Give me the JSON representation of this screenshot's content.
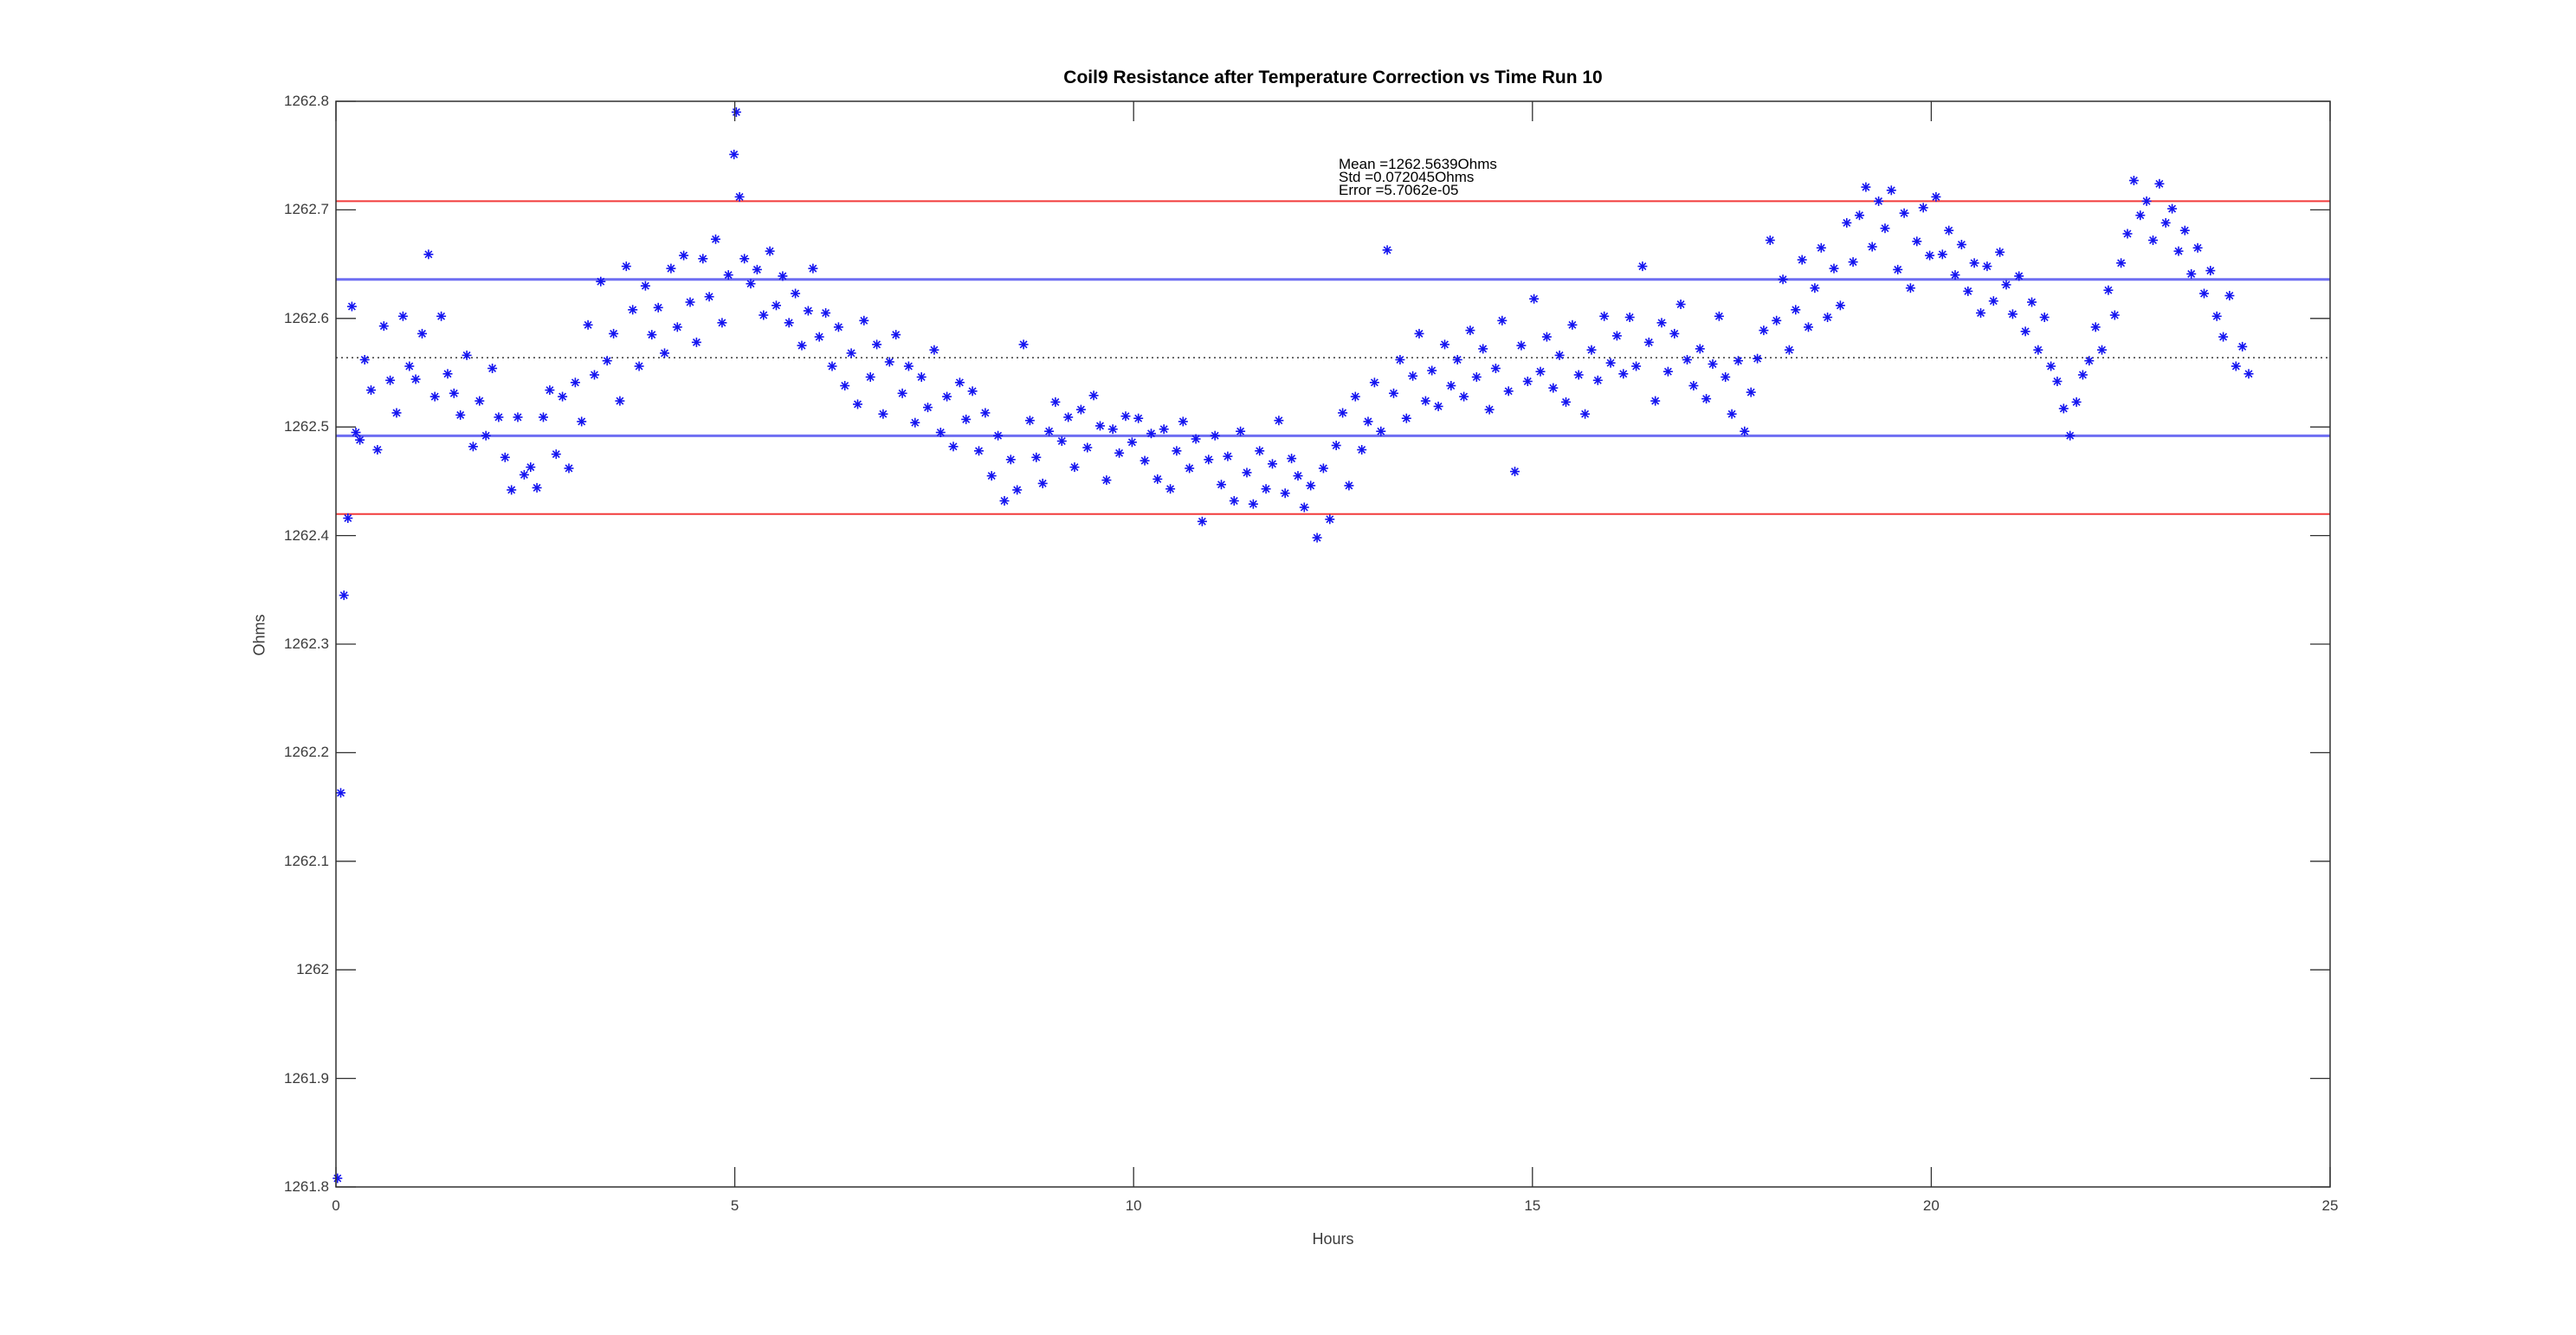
{
  "figure": {
    "title": "Coil9 Resistance after Temperature Correction vs Time Run 10",
    "annotation": {
      "mean_label": "Mean =1262.5639Ohms",
      "std_label": "Std =0.072045Ohms",
      "error_label": "Error =5.7062e-05"
    }
  },
  "chart_data": {
    "type": "scatter",
    "title": "Coil9 Resistance after Temperature Correction vs Time Run 10",
    "xlabel": "Hours",
    "ylabel": "Ohms",
    "xlim": [
      0,
      25
    ],
    "ylim": [
      1261.8,
      1262.8
    ],
    "xtick_values": [
      0,
      5,
      10,
      15,
      20,
      25
    ],
    "xtick_labels": [
      "0",
      "5",
      "10",
      "15",
      "20",
      "25"
    ],
    "ytick_values": [
      1261.8,
      1261.9,
      1262,
      1262.1,
      1262.2,
      1262.3,
      1262.4,
      1262.5,
      1262.6,
      1262.7,
      1262.8
    ],
    "ytick_labels": [
      "1261.8",
      "1261.9",
      "1262",
      "1262.1",
      "1262.2",
      "1262.3",
      "1262.4",
      "1262.5",
      "1262.6",
      "1262.7",
      "1262.8"
    ],
    "grid": false,
    "legend": "none",
    "marker": {
      "shape": "asterisk",
      "color": "#1414f0",
      "size": 11
    },
    "stats": {
      "mean": 1262.5639,
      "std": 0.072045,
      "error": 5.7062e-05
    },
    "stat_lines": [
      {
        "name": "mean",
        "value": 1262.5639,
        "style": "dotted",
        "color": "#111111",
        "width": 1.2
      },
      {
        "name": "mean-plus-std",
        "value": 1262.6359,
        "style": "solid",
        "color": "#6e6ef2",
        "width": 3
      },
      {
        "name": "mean-minus-std",
        "value": 1262.4919,
        "style": "solid",
        "color": "#6e6ef2",
        "width": 3
      },
      {
        "name": "mean-plus-2std",
        "value": 1262.708,
        "style": "solid",
        "color": "#f23b3b",
        "width": 2
      },
      {
        "name": "mean-minus-2std",
        "value": 1262.4198,
        "style": "solid",
        "color": "#f23b3b",
        "width": 2
      }
    ],
    "points": [
      [
        0.02,
        1261.808
      ],
      [
        0.06,
        1262.163
      ],
      [
        0.1,
        1262.345
      ],
      [
        0.15,
        1262.416
      ],
      [
        0.2,
        1262.611
      ],
      [
        0.25,
        1262.495
      ],
      [
        0.3,
        1262.488
      ],
      [
        0.36,
        1262.562
      ],
      [
        0.44,
        1262.534
      ],
      [
        0.52,
        1262.479
      ],
      [
        0.6,
        1262.593
      ],
      [
        0.68,
        1262.543
      ],
      [
        0.76,
        1262.513
      ],
      [
        0.84,
        1262.602
      ],
      [
        0.92,
        1262.556
      ],
      [
        1.0,
        1262.544
      ],
      [
        1.08,
        1262.586
      ],
      [
        1.16,
        1262.659
      ],
      [
        1.24,
        1262.528
      ],
      [
        1.32,
        1262.602
      ],
      [
        1.4,
        1262.549
      ],
      [
        1.48,
        1262.531
      ],
      [
        1.56,
        1262.511
      ],
      [
        1.64,
        1262.566
      ],
      [
        1.72,
        1262.482
      ],
      [
        1.8,
        1262.524
      ],
      [
        1.88,
        1262.492
      ],
      [
        1.96,
        1262.554
      ],
      [
        2.04,
        1262.509
      ],
      [
        2.12,
        1262.472
      ],
      [
        2.2,
        1262.442
      ],
      [
        2.28,
        1262.509
      ],
      [
        2.36,
        1262.456
      ],
      [
        2.44,
        1262.463
      ],
      [
        2.52,
        1262.444
      ],
      [
        2.6,
        1262.509
      ],
      [
        2.68,
        1262.534
      ],
      [
        2.76,
        1262.475
      ],
      [
        2.84,
        1262.528
      ],
      [
        2.92,
        1262.462
      ],
      [
        3.0,
        1262.541
      ],
      [
        3.08,
        1262.505
      ],
      [
        3.16,
        1262.594
      ],
      [
        3.24,
        1262.548
      ],
      [
        3.32,
        1262.634
      ],
      [
        3.4,
        1262.561
      ],
      [
        3.48,
        1262.586
      ],
      [
        3.56,
        1262.524
      ],
      [
        3.64,
        1262.648
      ],
      [
        3.72,
        1262.608
      ],
      [
        3.8,
        1262.556
      ],
      [
        3.88,
        1262.63
      ],
      [
        3.96,
        1262.585
      ],
      [
        4.04,
        1262.61
      ],
      [
        4.12,
        1262.568
      ],
      [
        4.2,
        1262.646
      ],
      [
        4.28,
        1262.592
      ],
      [
        4.36,
        1262.658
      ],
      [
        4.44,
        1262.615
      ],
      [
        4.52,
        1262.578
      ],
      [
        4.6,
        1262.655
      ],
      [
        4.68,
        1262.62
      ],
      [
        4.76,
        1262.673
      ],
      [
        4.84,
        1262.596
      ],
      [
        4.92,
        1262.64
      ],
      [
        4.99,
        1262.751
      ],
      [
        5.02,
        1262.79
      ],
      [
        5.06,
        1262.712
      ],
      [
        5.12,
        1262.655
      ],
      [
        5.2,
        1262.632
      ],
      [
        5.28,
        1262.645
      ],
      [
        5.36,
        1262.603
      ],
      [
        5.44,
        1262.662
      ],
      [
        5.52,
        1262.612
      ],
      [
        5.6,
        1262.639
      ],
      [
        5.68,
        1262.596
      ],
      [
        5.76,
        1262.623
      ],
      [
        5.84,
        1262.575
      ],
      [
        5.92,
        1262.607
      ],
      [
        5.98,
        1262.646
      ],
      [
        6.06,
        1262.583
      ],
      [
        6.14,
        1262.605
      ],
      [
        6.22,
        1262.556
      ],
      [
        6.3,
        1262.592
      ],
      [
        6.38,
        1262.538
      ],
      [
        6.46,
        1262.568
      ],
      [
        6.54,
        1262.521
      ],
      [
        6.62,
        1262.598
      ],
      [
        6.7,
        1262.546
      ],
      [
        6.78,
        1262.576
      ],
      [
        6.86,
        1262.512
      ],
      [
        6.94,
        1262.56
      ],
      [
        7.02,
        1262.585
      ],
      [
        7.1,
        1262.531
      ],
      [
        7.18,
        1262.556
      ],
      [
        7.26,
        1262.504
      ],
      [
        7.34,
        1262.546
      ],
      [
        7.42,
        1262.518
      ],
      [
        7.5,
        1262.571
      ],
      [
        7.58,
        1262.495
      ],
      [
        7.66,
        1262.528
      ],
      [
        7.74,
        1262.482
      ],
      [
        7.82,
        1262.541
      ],
      [
        7.9,
        1262.507
      ],
      [
        7.98,
        1262.533
      ],
      [
        8.06,
        1262.478
      ],
      [
        8.14,
        1262.513
      ],
      [
        8.22,
        1262.455
      ],
      [
        8.3,
        1262.492
      ],
      [
        8.38,
        1262.432
      ],
      [
        8.46,
        1262.47
      ],
      [
        8.54,
        1262.442
      ],
      [
        8.62,
        1262.576
      ],
      [
        8.7,
        1262.506
      ],
      [
        8.78,
        1262.472
      ],
      [
        8.86,
        1262.448
      ],
      [
        8.94,
        1262.496
      ],
      [
        9.02,
        1262.523
      ],
      [
        9.1,
        1262.487
      ],
      [
        9.18,
        1262.509
      ],
      [
        9.26,
        1262.463
      ],
      [
        9.34,
        1262.516
      ],
      [
        9.42,
        1262.481
      ],
      [
        9.5,
        1262.529
      ],
      [
        9.58,
        1262.501
      ],
      [
        9.66,
        1262.451
      ],
      [
        9.74,
        1262.498
      ],
      [
        9.82,
        1262.476
      ],
      [
        9.9,
        1262.51
      ],
      [
        9.98,
        1262.486
      ],
      [
        10.06,
        1262.508
      ],
      [
        10.14,
        1262.469
      ],
      [
        10.22,
        1262.494
      ],
      [
        10.3,
        1262.452
      ],
      [
        10.38,
        1262.498
      ],
      [
        10.46,
        1262.443
      ],
      [
        10.54,
        1262.478
      ],
      [
        10.62,
        1262.505
      ],
      [
        10.7,
        1262.462
      ],
      [
        10.78,
        1262.489
      ],
      [
        10.86,
        1262.413
      ],
      [
        10.94,
        1262.47
      ],
      [
        11.02,
        1262.492
      ],
      [
        11.1,
        1262.447
      ],
      [
        11.18,
        1262.473
      ],
      [
        11.26,
        1262.432
      ],
      [
        11.34,
        1262.496
      ],
      [
        11.42,
        1262.458
      ],
      [
        11.5,
        1262.429
      ],
      [
        11.58,
        1262.478
      ],
      [
        11.66,
        1262.443
      ],
      [
        11.74,
        1262.466
      ],
      [
        11.82,
        1262.506
      ],
      [
        11.9,
        1262.439
      ],
      [
        11.98,
        1262.471
      ],
      [
        12.06,
        1262.455
      ],
      [
        12.14,
        1262.426
      ],
      [
        12.22,
        1262.446
      ],
      [
        12.3,
        1262.398
      ],
      [
        12.38,
        1262.462
      ],
      [
        12.46,
        1262.415
      ],
      [
        12.54,
        1262.483
      ],
      [
        12.62,
        1262.513
      ],
      [
        12.7,
        1262.446
      ],
      [
        12.78,
        1262.528
      ],
      [
        12.86,
        1262.479
      ],
      [
        12.94,
        1262.505
      ],
      [
        13.02,
        1262.541
      ],
      [
        13.1,
        1262.496
      ],
      [
        13.18,
        1262.663
      ],
      [
        13.26,
        1262.531
      ],
      [
        13.34,
        1262.562
      ],
      [
        13.42,
        1262.508
      ],
      [
        13.5,
        1262.547
      ],
      [
        13.58,
        1262.586
      ],
      [
        13.66,
        1262.524
      ],
      [
        13.74,
        1262.552
      ],
      [
        13.82,
        1262.519
      ],
      [
        13.9,
        1262.576
      ],
      [
        13.98,
        1262.538
      ],
      [
        14.06,
        1262.562
      ],
      [
        14.14,
        1262.528
      ],
      [
        14.22,
        1262.589
      ],
      [
        14.3,
        1262.546
      ],
      [
        14.38,
        1262.572
      ],
      [
        14.46,
        1262.516
      ],
      [
        14.54,
        1262.554
      ],
      [
        14.62,
        1262.598
      ],
      [
        14.7,
        1262.533
      ],
      [
        14.78,
        1262.459
      ],
      [
        14.86,
        1262.575
      ],
      [
        14.94,
        1262.542
      ],
      [
        15.02,
        1262.618
      ],
      [
        15.1,
        1262.551
      ],
      [
        15.18,
        1262.583
      ],
      [
        15.26,
        1262.536
      ],
      [
        15.34,
        1262.566
      ],
      [
        15.42,
        1262.523
      ],
      [
        15.5,
        1262.594
      ],
      [
        15.58,
        1262.548
      ],
      [
        15.66,
        1262.512
      ],
      [
        15.74,
        1262.571
      ],
      [
        15.82,
        1262.543
      ],
      [
        15.9,
        1262.602
      ],
      [
        15.98,
        1262.559
      ],
      [
        16.06,
        1262.584
      ],
      [
        16.14,
        1262.549
      ],
      [
        16.22,
        1262.601
      ],
      [
        16.3,
        1262.556
      ],
      [
        16.38,
        1262.648
      ],
      [
        16.46,
        1262.578
      ],
      [
        16.54,
        1262.524
      ],
      [
        16.62,
        1262.596
      ],
      [
        16.7,
        1262.551
      ],
      [
        16.78,
        1262.586
      ],
      [
        16.86,
        1262.613
      ],
      [
        16.94,
        1262.562
      ],
      [
        17.02,
        1262.538
      ],
      [
        17.1,
        1262.572
      ],
      [
        17.18,
        1262.526
      ],
      [
        17.26,
        1262.558
      ],
      [
        17.34,
        1262.602
      ],
      [
        17.42,
        1262.546
      ],
      [
        17.5,
        1262.512
      ],
      [
        17.58,
        1262.561
      ],
      [
        17.66,
        1262.496
      ],
      [
        17.74,
        1262.532
      ],
      [
        17.82,
        1262.563
      ],
      [
        17.9,
        1262.589
      ],
      [
        17.98,
        1262.672
      ],
      [
        18.06,
        1262.598
      ],
      [
        18.14,
        1262.636
      ],
      [
        18.22,
        1262.571
      ],
      [
        18.3,
        1262.608
      ],
      [
        18.38,
        1262.654
      ],
      [
        18.46,
        1262.592
      ],
      [
        18.54,
        1262.628
      ],
      [
        18.62,
        1262.665
      ],
      [
        18.7,
        1262.601
      ],
      [
        18.78,
        1262.646
      ],
      [
        18.86,
        1262.612
      ],
      [
        18.94,
        1262.688
      ],
      [
        19.02,
        1262.652
      ],
      [
        19.1,
        1262.695
      ],
      [
        19.18,
        1262.721
      ],
      [
        19.26,
        1262.666
      ],
      [
        19.34,
        1262.708
      ],
      [
        19.42,
        1262.683
      ],
      [
        19.5,
        1262.718
      ],
      [
        19.58,
        1262.645
      ],
      [
        19.66,
        1262.697
      ],
      [
        19.74,
        1262.628
      ],
      [
        19.82,
        1262.671
      ],
      [
        19.9,
        1262.702
      ],
      [
        19.98,
        1262.658
      ],
      [
        20.06,
        1262.712
      ],
      [
        20.14,
        1262.659
      ],
      [
        20.22,
        1262.681
      ],
      [
        20.3,
        1262.64
      ],
      [
        20.38,
        1262.668
      ],
      [
        20.46,
        1262.625
      ],
      [
        20.54,
        1262.651
      ],
      [
        20.62,
        1262.605
      ],
      [
        20.7,
        1262.648
      ],
      [
        20.78,
        1262.616
      ],
      [
        20.86,
        1262.661
      ],
      [
        20.94,
        1262.631
      ],
      [
        21.02,
        1262.604
      ],
      [
        21.1,
        1262.639
      ],
      [
        21.18,
        1262.588
      ],
      [
        21.26,
        1262.615
      ],
      [
        21.34,
        1262.571
      ],
      [
        21.42,
        1262.601
      ],
      [
        21.5,
        1262.556
      ],
      [
        21.58,
        1262.542
      ],
      [
        21.66,
        1262.517
      ],
      [
        21.74,
        1262.492
      ],
      [
        21.82,
        1262.523
      ],
      [
        21.9,
        1262.548
      ],
      [
        21.98,
        1262.561
      ],
      [
        22.06,
        1262.592
      ],
      [
        22.14,
        1262.571
      ],
      [
        22.22,
        1262.626
      ],
      [
        22.3,
        1262.603
      ],
      [
        22.38,
        1262.651
      ],
      [
        22.46,
        1262.678
      ],
      [
        22.54,
        1262.727
      ],
      [
        22.62,
        1262.695
      ],
      [
        22.7,
        1262.708
      ],
      [
        22.78,
        1262.672
      ],
      [
        22.86,
        1262.724
      ],
      [
        22.94,
        1262.688
      ],
      [
        23.02,
        1262.701
      ],
      [
        23.1,
        1262.662
      ],
      [
        23.18,
        1262.681
      ],
      [
        23.26,
        1262.641
      ],
      [
        23.34,
        1262.665
      ],
      [
        23.42,
        1262.623
      ],
      [
        23.5,
        1262.644
      ],
      [
        23.58,
        1262.602
      ],
      [
        23.66,
        1262.583
      ],
      [
        23.74,
        1262.621
      ],
      [
        23.82,
        1262.556
      ],
      [
        23.9,
        1262.574
      ],
      [
        23.98,
        1262.549
      ]
    ]
  }
}
